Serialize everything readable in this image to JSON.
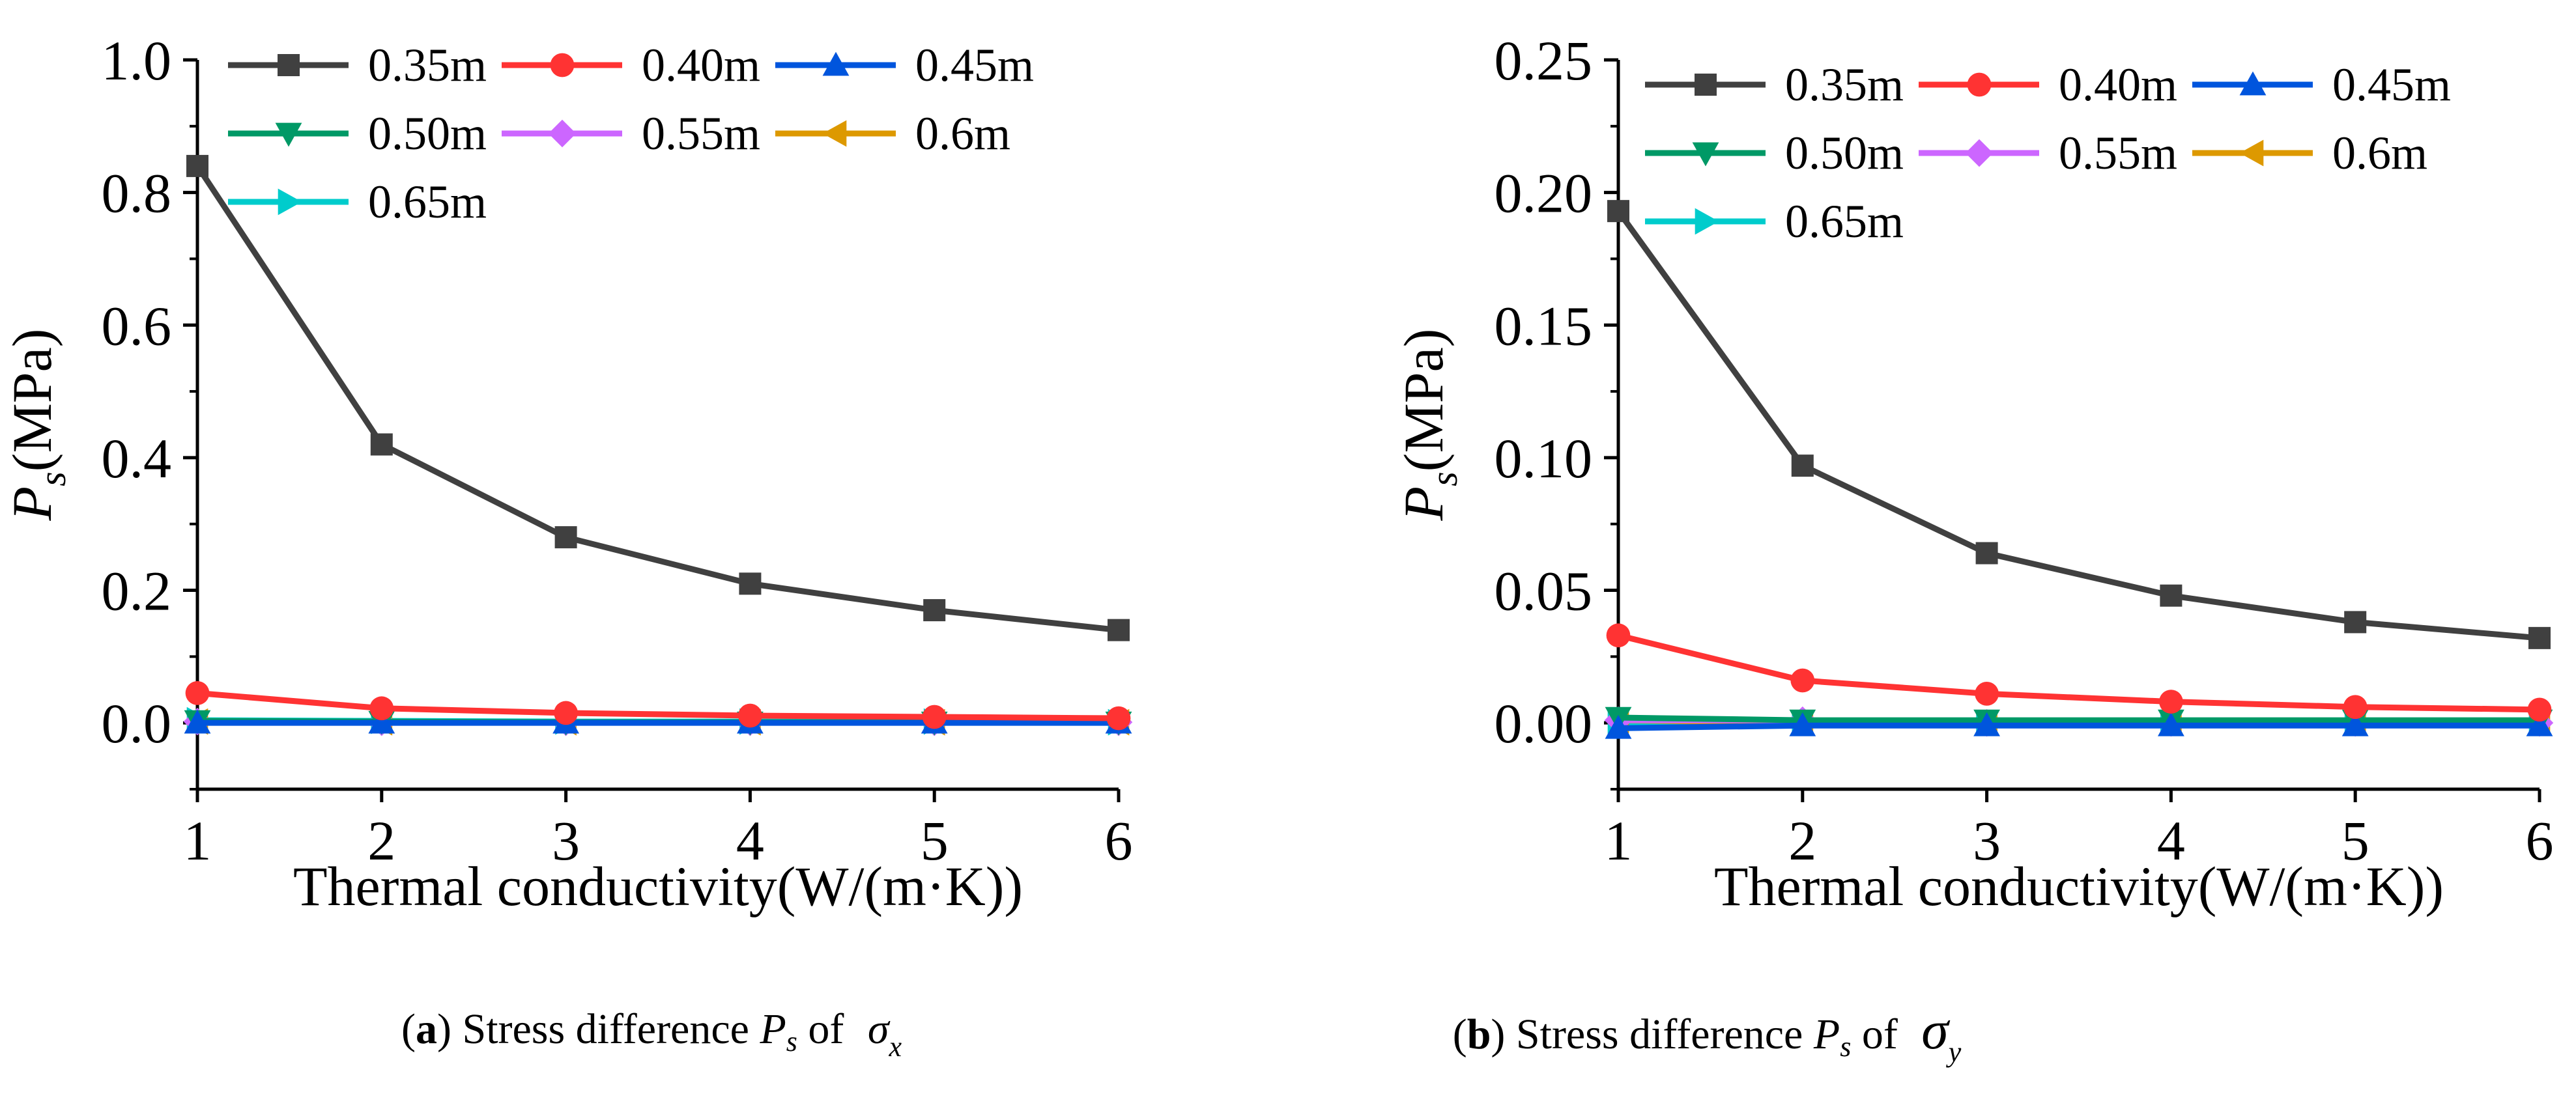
{
  "chart_data": [
    {
      "type": "line",
      "panel": "a",
      "xlabel": "Thermal conductivity(W/(m·K))",
      "ylabel_main": "P",
      "ylabel_sub": "s",
      "ylabel_unit": "(MPa)",
      "xlim": [
        1,
        6
      ],
      "ylim": [
        -0.1,
        1.0
      ],
      "x_ticks": [
        "1",
        "2",
        "3",
        "4",
        "5",
        "6"
      ],
      "y_ticks": [
        "0.0",
        "0.2",
        "0.4",
        "0.6",
        "0.8",
        "1.0"
      ],
      "x": [
        1,
        2,
        3,
        4,
        5,
        6
      ],
      "series": [
        {
          "name": "0.35m",
          "color": "#404040",
          "marker": "square",
          "values": [
            0.84,
            0.42,
            0.28,
            0.21,
            0.17,
            0.14
          ]
        },
        {
          "name": "0.40m",
          "color": "#ff3333",
          "marker": "circle",
          "values": [
            0.045,
            0.022,
            0.015,
            0.011,
            0.009,
            0.007
          ]
        },
        {
          "name": "0.45m",
          "color": "#0055dd",
          "marker": "triangle-up",
          "values": [
            0.0,
            0.0,
            0.0,
            0.0,
            0.0,
            0.0
          ]
        },
        {
          "name": "0.50m",
          "color": "#009966",
          "marker": "triangle-down",
          "values": [
            0.003,
            0.002,
            0.001,
            0.001,
            0.001,
            0.001
          ]
        },
        {
          "name": "0.55m",
          "color": "#cc66ff",
          "marker": "diamond",
          "values": [
            0.002,
            0.001,
            0.001,
            0.001,
            0.001,
            0.001
          ]
        },
        {
          "name": "0.6m",
          "color": "#dd9900",
          "marker": "triangle-left",
          "values": [
            0.002,
            0.001,
            0.001,
            0.001,
            0.001,
            0.001
          ]
        },
        {
          "name": "0.65m",
          "color": "#00cccc",
          "marker": "triangle-right",
          "values": [
            0.004,
            0.003,
            0.002,
            0.002,
            0.002,
            0.001
          ]
        }
      ],
      "caption": {
        "letter": "a",
        "text": " Stress difference ",
        "ps_main": "P",
        "ps_sub": "s",
        "of": " of ",
        "sigma": "σ",
        "sigma_sub": "x"
      }
    },
    {
      "type": "line",
      "panel": "b",
      "xlabel": "Thermal conductivity(W/(m·K))",
      "ylabel_main": "P",
      "ylabel_sub": "s",
      "ylabel_unit": "(MPa)",
      "xlim": [
        1,
        6
      ],
      "ylim": [
        -0.025,
        0.25
      ],
      "x_ticks": [
        "1",
        "2",
        "3",
        "4",
        "5",
        "6"
      ],
      "y_ticks": [
        "0.00",
        "0.05",
        "0.10",
        "0.15",
        "0.20",
        "0.25"
      ],
      "x": [
        1,
        2,
        3,
        4,
        5,
        6
      ],
      "series": [
        {
          "name": "0.35m",
          "color": "#404040",
          "marker": "square",
          "values": [
            0.193,
            0.097,
            0.064,
            0.048,
            0.038,
            0.032
          ]
        },
        {
          "name": "0.40m",
          "color": "#ff3333",
          "marker": "circle",
          "values": [
            0.033,
            0.016,
            0.011,
            0.008,
            0.006,
            0.005
          ]
        },
        {
          "name": "0.45m",
          "color": "#0055dd",
          "marker": "triangle-up",
          "values": [
            -0.002,
            -0.001,
            -0.001,
            -0.001,
            -0.001,
            -0.001
          ]
        },
        {
          "name": "0.50m",
          "color": "#009966",
          "marker": "triangle-down",
          "values": [
            0.002,
            0.001,
            0.001,
            0.001,
            0.001,
            0.001
          ]
        },
        {
          "name": "0.55m",
          "color": "#cc66ff",
          "marker": "diamond",
          "values": [
            0.001,
            0.001,
            0.0,
            0.0,
            0.0,
            0.0
          ]
        },
        {
          "name": "0.6m",
          "color": "#dd9900",
          "marker": "triangle-left",
          "values": [
            0.001,
            0.0,
            0.0,
            0.0,
            0.0,
            0.0
          ]
        },
        {
          "name": "0.65m",
          "color": "#00cccc",
          "marker": "triangle-right",
          "values": [
            0.0,
            0.0,
            0.0,
            0.0,
            0.0,
            0.0
          ]
        }
      ],
      "caption": {
        "letter": "b",
        "text": " Stress difference ",
        "ps_main": "P",
        "ps_sub": "s",
        "of": " of ",
        "sigma": "σ",
        "sigma_sub": "y"
      }
    }
  ]
}
